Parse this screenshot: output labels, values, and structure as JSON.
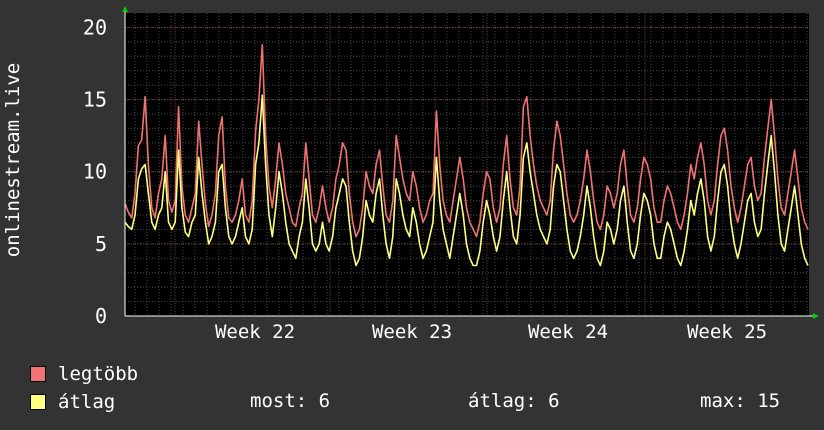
{
  "chart_data": {
    "type": "line",
    "ylabel": "onlinestream.live",
    "ylim": [
      0,
      21
    ],
    "yticks": [
      0,
      5,
      10,
      15,
      20
    ],
    "x_tick_labels": [
      "Week 22",
      "Week 23",
      "Week 24",
      "Week 25"
    ],
    "grid": true,
    "legend_placement": "bottom-left",
    "colors": {
      "background": "#333333",
      "plot_background": "#000000",
      "grid": "#4a4a4a",
      "axis": "#ffffff",
      "arrow": "#00cc00"
    },
    "series": [
      {
        "name": "legtöbb",
        "color": "#f07272",
        "values": [
          7.8,
          7.2,
          6.8,
          8.5,
          11.8,
          12.2,
          15.2,
          10.5,
          7.5,
          6.8,
          8.5,
          9.5,
          12.5,
          8.0,
          7.2,
          8.0,
          14.5,
          9.0,
          7.0,
          6.5,
          7.5,
          8.5,
          13.5,
          10.5,
          7.8,
          6.2,
          7.0,
          8.5,
          12.5,
          13.8,
          9.0,
          6.8,
          6.5,
          7.0,
          8.0,
          9.5,
          7.0,
          6.5,
          8.0,
          12.8,
          15.0,
          18.8,
          12.5,
          9.0,
          7.5,
          9.5,
          12.0,
          10.5,
          8.5,
          7.5,
          6.5,
          6.2,
          7.5,
          8.5,
          12.0,
          9.5,
          7.0,
          6.5,
          7.5,
          9.0,
          7.5,
          6.5,
          7.5,
          9.5,
          10.5,
          12.0,
          11.5,
          8.5,
          6.5,
          5.5,
          6.0,
          7.5,
          10.0,
          9.0,
          8.5,
          10.5,
          11.5,
          9.0,
          7.0,
          6.5,
          8.0,
          12.5,
          11.0,
          9.5,
          8.5,
          8.0,
          10.0,
          9.0,
          7.5,
          6.5,
          7.0,
          8.0,
          8.5,
          14.2,
          10.5,
          8.0,
          7.0,
          6.5,
          8.0,
          9.5,
          11.0,
          9.5,
          7.5,
          6.5,
          6.0,
          5.5,
          6.5,
          8.5,
          10.0,
          9.5,
          7.5,
          6.5,
          7.5,
          10.5,
          12.5,
          9.5,
          7.5,
          7.0,
          9.0,
          14.5,
          15.2,
          12.5,
          10.5,
          9.0,
          8.0,
          7.5,
          7.0,
          8.0,
          11.5,
          13.5,
          12.5,
          10.5,
          8.5,
          7.0,
          6.5,
          7.0,
          8.0,
          9.5,
          11.5,
          10.0,
          8.0,
          6.5,
          6.0,
          7.0,
          9.0,
          8.5,
          7.5,
          8.5,
          10.5,
          11.5,
          9.0,
          7.0,
          6.5,
          7.5,
          9.5,
          11.0,
          10.5,
          9.5,
          7.5,
          6.5,
          6.5,
          8.0,
          9.0,
          8.5,
          7.5,
          6.5,
          6.0,
          7.0,
          8.5,
          10.5,
          9.5,
          11.0,
          12.0,
          10.5,
          8.0,
          7.0,
          8.0,
          10.5,
          12.5,
          13.0,
          11.5,
          9.0,
          7.5,
          6.5,
          7.5,
          9.0,
          10.5,
          11.0,
          9.0,
          8.0,
          8.5,
          11.0,
          13.0,
          15.0,
          12.5,
          9.5,
          7.5,
          7.0,
          8.5,
          10.0,
          11.5,
          9.5,
          7.5,
          6.5,
          6.0
        ]
      },
      {
        "name": "átlag",
        "color": "#ffff80",
        "values": [
          6.5,
          6.2,
          6.0,
          7.0,
          9.5,
          10.2,
          10.5,
          8.5,
          6.5,
          6.0,
          7.0,
          7.5,
          10.0,
          6.5,
          6.0,
          6.5,
          11.5,
          7.5,
          5.8,
          5.5,
          6.5,
          7.0,
          11.0,
          8.5,
          6.5,
          5.0,
          5.5,
          6.5,
          10.0,
          10.5,
          7.5,
          5.5,
          5.0,
          5.5,
          6.5,
          7.5,
          5.5,
          5.0,
          6.0,
          10.5,
          12.0,
          15.3,
          10.5,
          7.0,
          5.5,
          7.5,
          10.0,
          8.5,
          6.5,
          5.0,
          4.5,
          4.0,
          5.5,
          6.5,
          9.5,
          7.5,
          5.0,
          4.5,
          5.0,
          6.5,
          5.0,
          4.5,
          5.5,
          7.5,
          8.5,
          9.5,
          9.0,
          6.5,
          4.5,
          3.5,
          4.0,
          5.5,
          8.0,
          7.0,
          6.5,
          8.5,
          9.5,
          7.0,
          5.0,
          4.0,
          5.5,
          9.5,
          8.5,
          7.0,
          6.0,
          5.5,
          7.5,
          6.5,
          5.0,
          4.0,
          4.5,
          5.5,
          6.5,
          11.0,
          8.0,
          6.0,
          5.0,
          4.0,
          5.5,
          7.0,
          8.5,
          7.0,
          5.0,
          4.0,
          3.5,
          3.5,
          4.5,
          6.5,
          8.0,
          7.0,
          5.5,
          4.5,
          5.5,
          8.0,
          10.0,
          7.5,
          5.5,
          5.0,
          7.0,
          11.0,
          12.0,
          10.0,
          8.5,
          7.0,
          6.0,
          5.5,
          5.0,
          6.0,
          9.0,
          10.5,
          10.0,
          8.0,
          6.0,
          4.5,
          4.0,
          4.5,
          5.5,
          7.0,
          9.0,
          7.5,
          5.5,
          4.0,
          3.5,
          4.5,
          6.5,
          6.0,
          5.0,
          6.0,
          8.0,
          9.0,
          6.5,
          4.5,
          4.0,
          5.0,
          7.0,
          8.5,
          8.0,
          7.0,
          5.0,
          4.0,
          4.0,
          5.5,
          6.5,
          6.0,
          5.0,
          4.0,
          3.5,
          4.5,
          6.0,
          8.0,
          7.0,
          8.5,
          9.5,
          8.0,
          5.5,
          4.5,
          5.5,
          8.0,
          10.0,
          10.5,
          9.0,
          6.5,
          5.0,
          4.0,
          5.0,
          6.5,
          8.0,
          8.5,
          6.5,
          5.5,
          6.0,
          8.5,
          10.5,
          12.5,
          10.0,
          7.0,
          5.0,
          4.5,
          6.0,
          7.5,
          9.0,
          7.0,
          5.0,
          4.0,
          3.5
        ]
      }
    ]
  },
  "legend": {
    "items": [
      {
        "label": "legtöbb",
        "color": "#f07272"
      },
      {
        "label": "átlag",
        "color": "#ffff80"
      }
    ]
  },
  "stats": {
    "now": "most: 6",
    "avg": "átlag: 6",
    "max": "max: 15"
  }
}
